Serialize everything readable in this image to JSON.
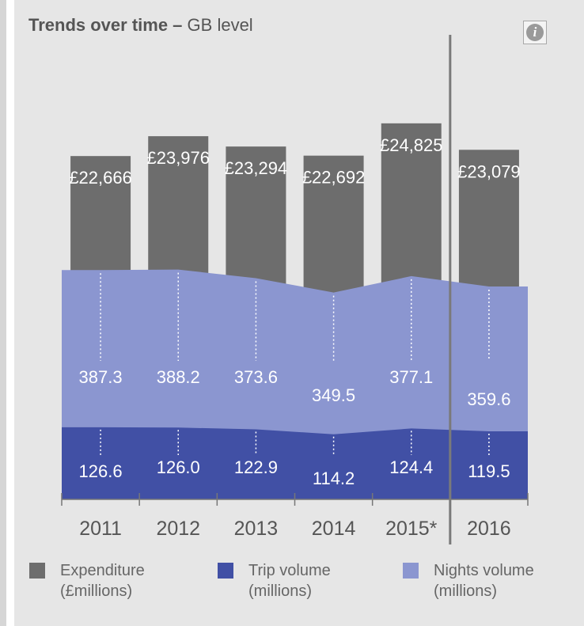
{
  "header": {
    "title_bold": "Trends over time –",
    "title_rest": "GB level",
    "info_icon": "info-icon"
  },
  "legend": [
    {
      "line1": "Expenditure",
      "line2": "(£millions)",
      "color": "#6d6d6d"
    },
    {
      "line1": "Trip volume",
      "line2": "(millions)",
      "color": "#4150a5"
    },
    {
      "line1": "Nights volume",
      "line2": "(millions)",
      "color": "#8b96d0"
    }
  ],
  "chart_data": {
    "type": "bar",
    "title": "Trends over time – GB level",
    "categories": [
      "2011",
      "2012",
      "2013",
      "2014",
      "2015*",
      "2016"
    ],
    "series": [
      {
        "name": "Expenditure (£millions)",
        "type": "bar",
        "color": "#6d6d6d",
        "values": [
          22666,
          23976,
          23294,
          22692,
          24825,
          23079
        ],
        "labels": [
          "£22,666",
          "£23,976",
          "£23,294",
          "£22,692",
          "£24,825",
          "£23,079"
        ]
      },
      {
        "name": "Nights volume (millions)",
        "type": "area",
        "color": "#8b96d0",
        "values": [
          387.3,
          388.2,
          373.6,
          349.5,
          377.1,
          359.6
        ],
        "labels": [
          "387.3",
          "388.2",
          "373.6",
          "349.5",
          "377.1",
          "359.6"
        ]
      },
      {
        "name": "Trip volume (millions)",
        "type": "area",
        "color": "#4150a5",
        "values": [
          126.6,
          126.0,
          122.9,
          114.2,
          124.4,
          119.5
        ],
        "labels": [
          "126.6",
          "126.0",
          "122.9",
          "114.2",
          "124.4",
          "119.5"
        ]
      }
    ],
    "divider_after_category": "2015*",
    "gridlines": false
  }
}
